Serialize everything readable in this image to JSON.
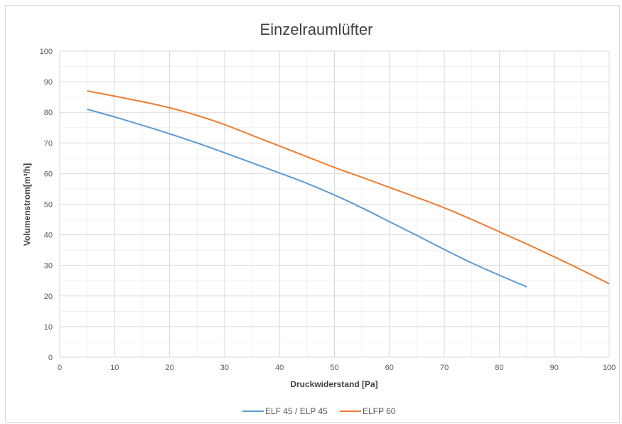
{
  "chart_data": {
    "type": "line",
    "title": "Einzelraumlüfter",
    "xlabel": "Druckwiderstand [Pa]",
    "ylabel": "Volumenstrom[m³/h]",
    "xlim": [
      0,
      100
    ],
    "ylim": [
      0,
      100
    ],
    "xticks": [
      0,
      10,
      20,
      30,
      40,
      50,
      60,
      70,
      80,
      90,
      100
    ],
    "yticks": [
      0,
      10,
      20,
      30,
      40,
      50,
      60,
      70,
      80,
      90,
      100
    ],
    "grid": true,
    "legend_position": "bottom",
    "series": [
      {
        "name": "ELF 45 / ELP 45",
        "color": "#5b9bd5",
        "points": [
          [
            5,
            81
          ],
          [
            10,
            78.5
          ],
          [
            15,
            75.8
          ],
          [
            20,
            73
          ],
          [
            25,
            70
          ],
          [
            30,
            66.8
          ],
          [
            35,
            63.5
          ],
          [
            40,
            60.2
          ],
          [
            45,
            56.8
          ],
          [
            50,
            53
          ],
          [
            55,
            48.8
          ],
          [
            60,
            44.3
          ],
          [
            65,
            39.8
          ],
          [
            70,
            35.2
          ],
          [
            75,
            30.8
          ],
          [
            80,
            26.8
          ],
          [
            85,
            23
          ]
        ]
      },
      {
        "name": "ELFP 60",
        "color": "#ed7d31",
        "points": [
          [
            5,
            87
          ],
          [
            10,
            85.3
          ],
          [
            15,
            83.5
          ],
          [
            20,
            81.5
          ],
          [
            25,
            79
          ],
          [
            30,
            76
          ],
          [
            35,
            72.5
          ],
          [
            40,
            69
          ],
          [
            45,
            65.5
          ],
          [
            50,
            62
          ],
          [
            55,
            58.8
          ],
          [
            60,
            55.5
          ],
          [
            65,
            52.2
          ],
          [
            70,
            48.8
          ],
          [
            75,
            45
          ],
          [
            80,
            41
          ],
          [
            85,
            37
          ],
          [
            90,
            32.8
          ],
          [
            95,
            28.5
          ],
          [
            100,
            24
          ]
        ]
      }
    ]
  }
}
